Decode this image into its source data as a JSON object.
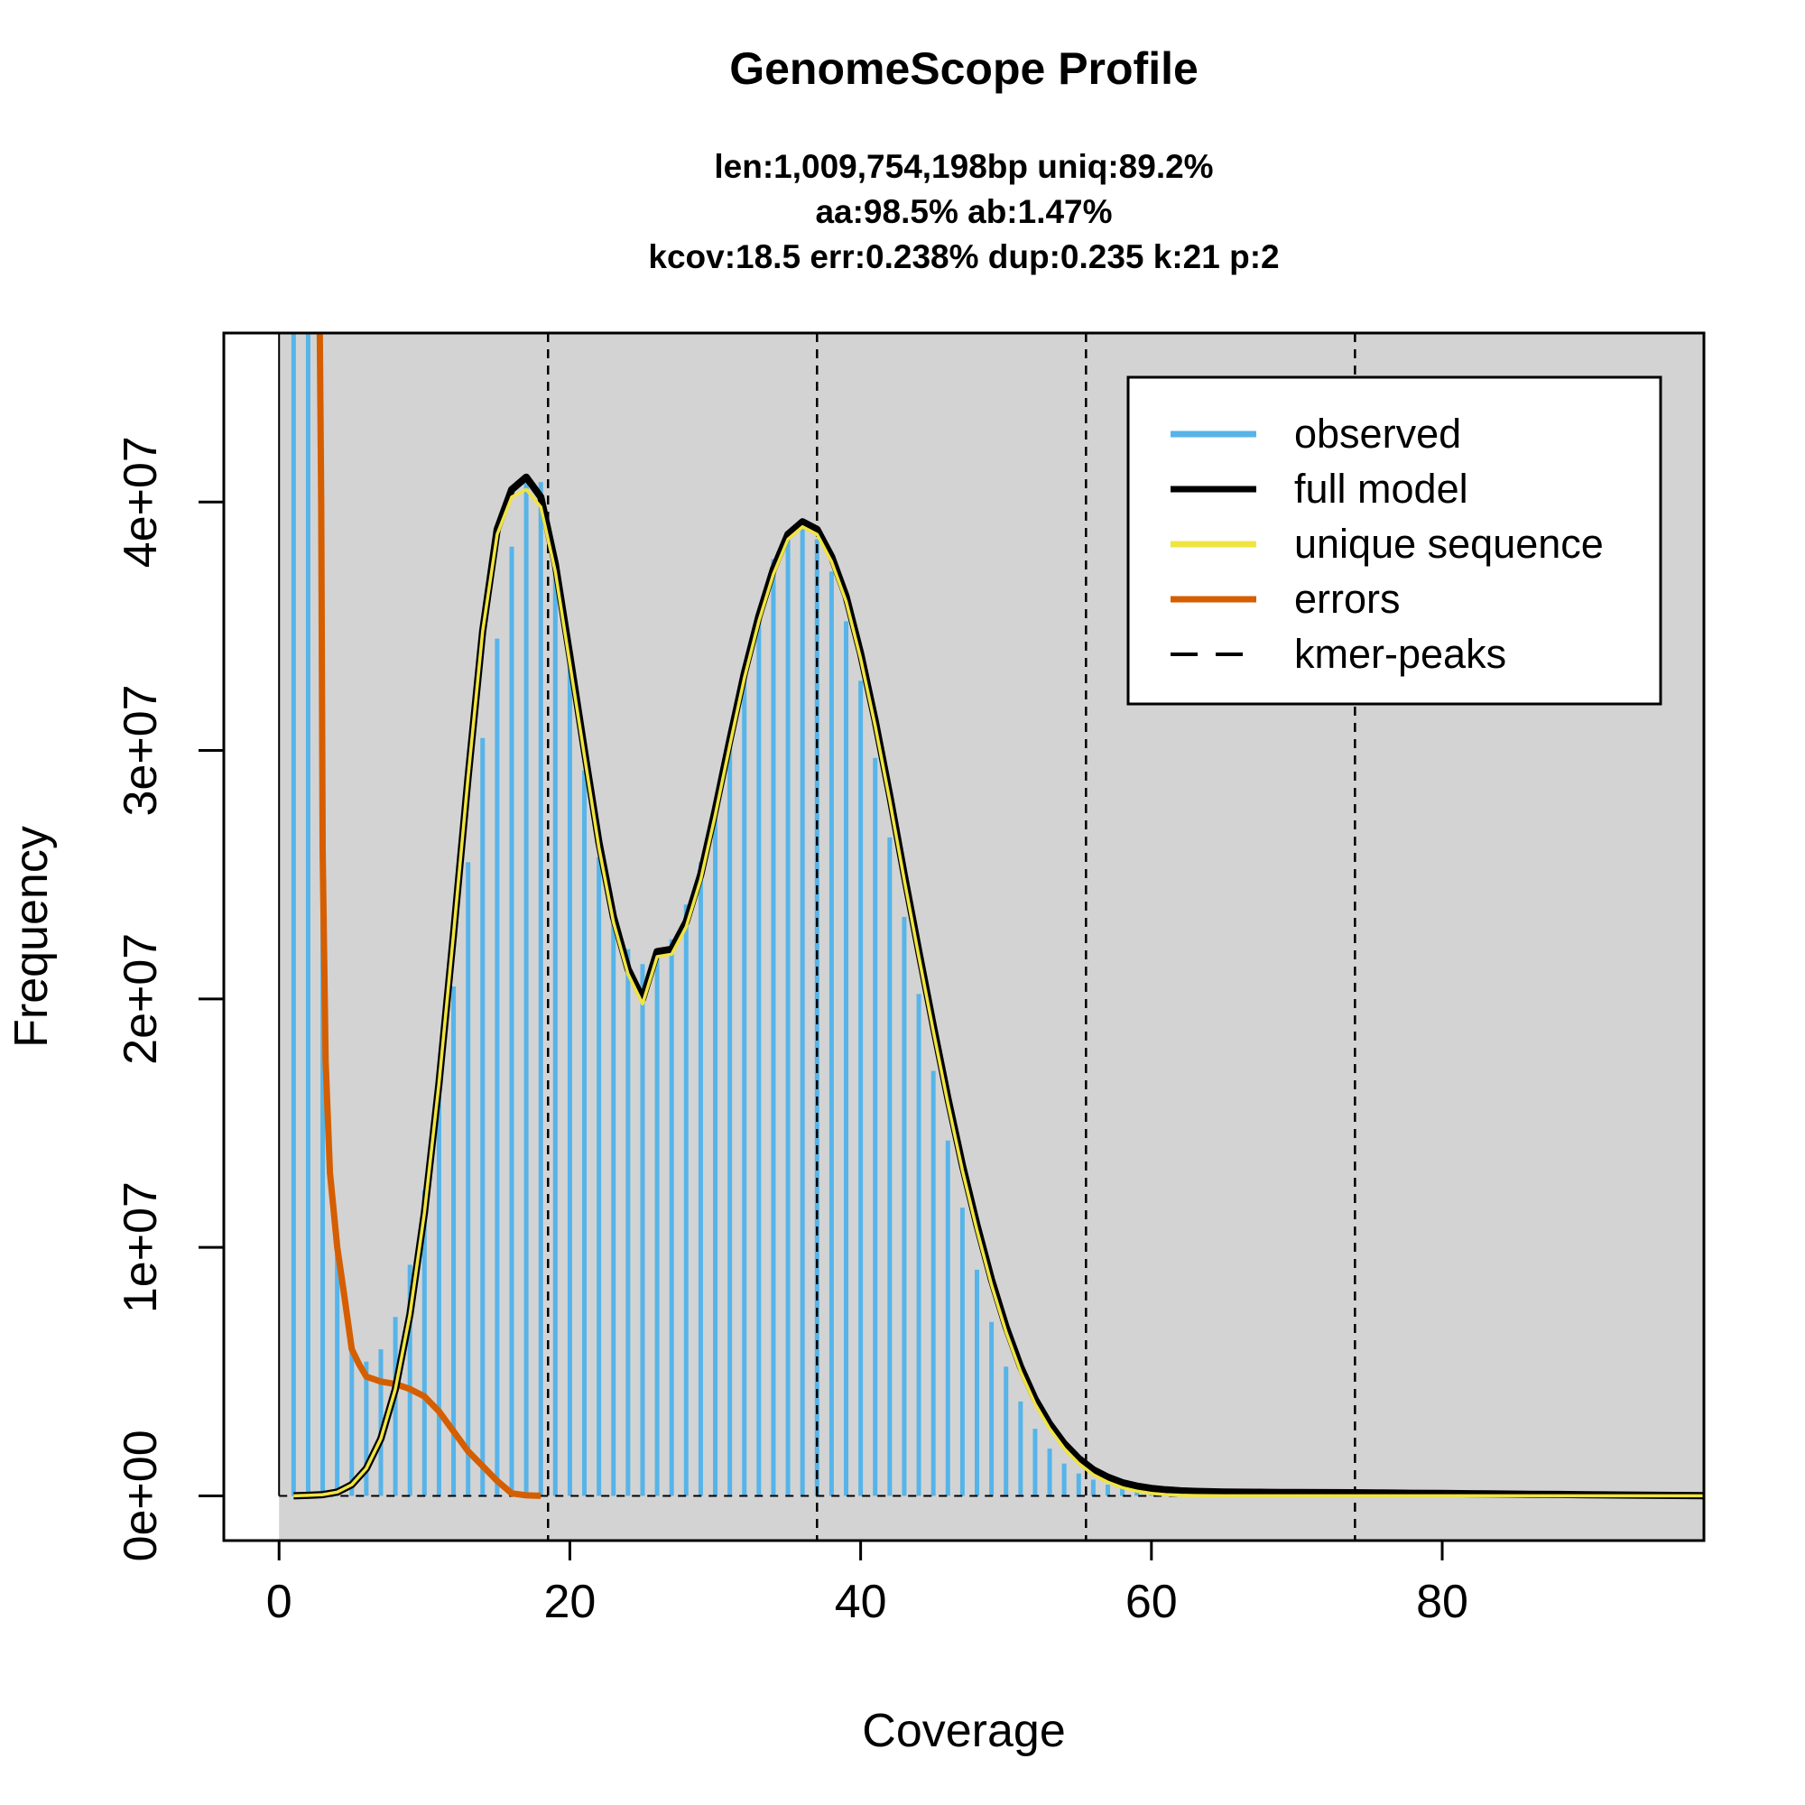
{
  "chart_data": {
    "type": "bar",
    "title": "GenomeScope Profile",
    "subtitle_lines": [
      "len:1,009,754,198bp uniq:89.2%",
      "aa:98.5% ab:1.47%",
      "kcov:18.5 err:0.238%  dup:0.235  k:21 p:2"
    ],
    "xlabel": "Coverage",
    "ylabel": "Frequency",
    "xlim": [
      -3.8,
      98
    ],
    "ylim": [
      -1800000,
      46800000
    ],
    "x_ticks": [
      0,
      20,
      40,
      60,
      80
    ],
    "x_tick_labels": [
      "0",
      "20",
      "40",
      "60",
      "80"
    ],
    "y_ticks": [
      0,
      10000000,
      20000000,
      30000000,
      40000000
    ],
    "y_tick_labels": [
      "0e+00",
      "1e+07",
      "2e+07",
      "3e+07",
      "4e+07"
    ],
    "background_color": "#d3d3d3",
    "grid": false,
    "legend_position": "top-right",
    "legend": [
      {
        "label": "observed",
        "color": "#56b4e9",
        "style": "solid"
      },
      {
        "label": "full model",
        "color": "#000000",
        "style": "solid"
      },
      {
        "label": "unique sequence",
        "color": "#f0e442",
        "style": "solid"
      },
      {
        "label": "errors",
        "color": "#d55e00",
        "style": "solid"
      },
      {
        "label": "kmer-peaks",
        "color": "#000000",
        "style": "dashed"
      }
    ],
    "observed": {
      "name": "observed",
      "color": "#56b4e9",
      "x": [
        1,
        2,
        3,
        4,
        5,
        6,
        7,
        8,
        9,
        10,
        11,
        12,
        13,
        14,
        15,
        16,
        17,
        18,
        19,
        20,
        21,
        22,
        23,
        24,
        25,
        26,
        27,
        28,
        29,
        30,
        31,
        32,
        33,
        34,
        35,
        36,
        37,
        38,
        39,
        40,
        41,
        42,
        43,
        44,
        45,
        46,
        47,
        48,
        49,
        50,
        51,
        52,
        53,
        54,
        55,
        56,
        57,
        58,
        59,
        60,
        61,
        62,
        63,
        64,
        65,
        66,
        67,
        68,
        69,
        70,
        71,
        72,
        73,
        74,
        75,
        76,
        77,
        78,
        79,
        80,
        81,
        82,
        83,
        84,
        85,
        86,
        87,
        88,
        89,
        90,
        91,
        92,
        93,
        94,
        95,
        96,
        97,
        98
      ],
      "values": [
        47000000,
        47000000,
        26000000,
        10000000,
        6000000,
        5400000,
        5900000,
        7200000,
        9300000,
        12300000,
        16100000,
        20500000,
        25500000,
        30500000,
        34500000,
        38200000,
        40800000,
        40800000,
        37800000,
        33500000,
        29200000,
        25700000,
        23400000,
        22000000,
        21400000,
        21700000,
        22400000,
        23800000,
        25500000,
        27800000,
        30400000,
        33100000,
        35600000,
        37700000,
        38800000,
        39000000,
        38500000,
        37200000,
        35200000,
        32800000,
        29700000,
        26500000,
        23300000,
        20200000,
        17100000,
        14300000,
        11600000,
        9100000,
        7000000,
        5200000,
        3800000,
        2700000,
        1900000,
        1300000,
        900000,
        650000,
        450000,
        320000,
        230000,
        170000,
        140000,
        110000,
        90000,
        80000,
        70000,
        60000,
        55000,
        50000,
        45000,
        40000,
        38000,
        36000,
        34000,
        32000,
        30000,
        28000,
        26000,
        24000,
        22000,
        20000,
        18000,
        16000,
        14000,
        12000,
        10000,
        8000,
        6000,
        5000,
        4000,
        3000,
        2000,
        1500,
        1000,
        800,
        600,
        400,
        200,
        100
      ]
    },
    "full_model": {
      "name": "full model",
      "color": "#000000",
      "x": [
        1,
        2,
        3,
        4,
        5,
        6,
        7,
        8,
        9,
        10,
        11,
        12,
        13,
        14,
        15,
        16,
        17,
        18,
        19,
        20,
        21,
        22,
        23,
        24,
        25,
        26,
        27,
        28,
        29,
        30,
        31,
        32,
        33,
        34,
        35,
        36,
        37,
        38,
        39,
        40,
        41,
        42,
        43,
        44,
        45,
        46,
        47,
        48,
        49,
        50,
        51,
        52,
        53,
        54,
        55,
        56,
        57,
        58,
        59,
        60,
        61,
        62,
        63,
        64,
        65,
        66,
        67,
        68,
        69,
        70,
        72,
        74,
        76,
        78,
        80,
        82,
        84,
        86,
        88,
        90,
        92,
        94,
        96,
        98
      ],
      "values": [
        0,
        20000,
        50000,
        150000,
        450000,
        1100000,
        2300000,
        4300000,
        7300000,
        11400000,
        16600000,
        22600000,
        28900000,
        34800000,
        38900000,
        40500000,
        41000000,
        40200000,
        37500000,
        33800000,
        30000000,
        26300000,
        23300000,
        21200000,
        20000000,
        21900000,
        22000000,
        23100000,
        25000000,
        27600000,
        30400000,
        33100000,
        35400000,
        37300000,
        38700000,
        39200000,
        38900000,
        37800000,
        36200000,
        33900000,
        31200000,
        28200000,
        25000000,
        21900000,
        18900000,
        16000000,
        13300000,
        10900000,
        8700000,
        6800000,
        5200000,
        3900000,
        2900000,
        2100000,
        1500000,
        1050000,
        750000,
        530000,
        390000,
        300000,
        240000,
        200000,
        180000,
        165000,
        155000,
        148000,
        143000,
        140000,
        137000,
        135000,
        130000,
        125000,
        115000,
        105000,
        95000,
        85000,
        75000,
        65000,
        55000,
        45000,
        35000,
        25000,
        15000,
        5000
      ]
    },
    "unique_sequence": {
      "name": "unique sequence",
      "color": "#f0e442",
      "x": [
        1,
        2,
        3,
        4,
        5,
        6,
        7,
        8,
        9,
        10,
        11,
        12,
        13,
        14,
        15,
        16,
        17,
        18,
        19,
        20,
        21,
        22,
        23,
        24,
        25,
        26,
        27,
        28,
        29,
        30,
        31,
        32,
        33,
        34,
        35,
        36,
        37,
        38,
        39,
        40,
        41,
        42,
        43,
        44,
        45,
        46,
        47,
        48,
        49,
        50,
        51,
        52,
        53,
        54,
        55,
        56,
        57,
        58,
        59,
        60,
        61,
        62,
        63,
        64,
        65,
        66,
        68,
        70,
        72,
        74,
        76,
        78,
        80,
        82,
        84,
        86,
        88,
        90,
        92,
        94,
        96,
        98
      ],
      "values": [
        0,
        20000,
        50000,
        150000,
        450000,
        1100000,
        2300000,
        4300000,
        7300000,
        11400000,
        16600000,
        22600000,
        28900000,
        34800000,
        38700000,
        40200000,
        40500000,
        39800000,
        37200000,
        33500000,
        29800000,
        26100000,
        23100000,
        21000000,
        19800000,
        21700000,
        21800000,
        22900000,
        24800000,
        27400000,
        30200000,
        32900000,
        35200000,
        37100000,
        38500000,
        39000000,
        38700000,
        37600000,
        36000000,
        33700000,
        31000000,
        28000000,
        24800000,
        21700000,
        18700000,
        15800000,
        13100000,
        10700000,
        8500000,
        6600000,
        5000000,
        3700000,
        2700000,
        1900000,
        1300000,
        850000,
        550000,
        330000,
        190000,
        100000,
        50000,
        25000,
        12000,
        6000,
        3000,
        1500,
        800,
        400,
        200,
        100,
        50,
        20,
        10,
        0,
        0,
        0,
        0,
        0,
        0,
        0,
        0,
        0
      ]
    },
    "errors": {
      "name": "errors",
      "color": "#d55e00",
      "x": [
        2.8,
        2.9,
        3,
        3.2,
        3.5,
        4,
        4.5,
        5,
        5.5,
        6,
        7,
        8,
        9,
        10,
        11,
        12,
        13,
        14,
        15,
        16,
        17,
        18
      ],
      "values": [
        47000000,
        40000000,
        26000000,
        17500000,
        13000000,
        10000000,
        8000000,
        5900000,
        5300000,
        4800000,
        4600000,
        4500000,
        4300000,
        4000000,
        3400000,
        2600000,
        1800000,
        1200000,
        600000,
        100000,
        20000,
        0
      ]
    },
    "kmer_peaks": {
      "name": "kmer-peaks",
      "color": "#000000",
      "x": [
        18.5,
        37,
        55.5,
        74
      ]
    }
  }
}
